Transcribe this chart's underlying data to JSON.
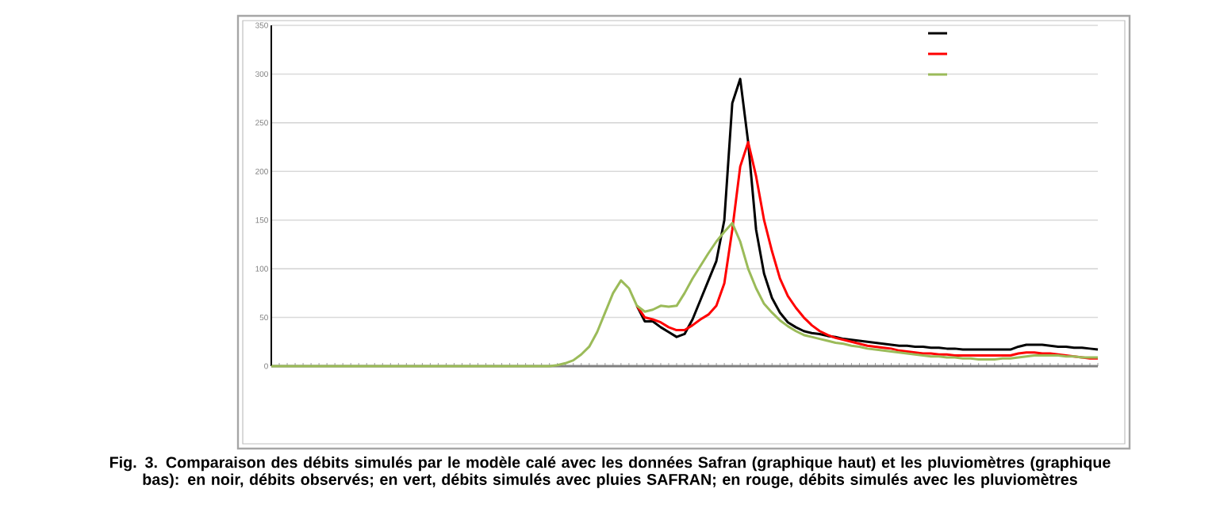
{
  "chart_data": {
    "type": "line",
    "categories": [
      null,
      null,
      null,
      null,
      null,
      null,
      null,
      null,
      null,
      null,
      null,
      null,
      null,
      null,
      null,
      null,
      null,
      null,
      null,
      null,
      null,
      null,
      null,
      null,
      null,
      null,
      null,
      null,
      null,
      null,
      null,
      null,
      null,
      null,
      null,
      null,
      null,
      null,
      null,
      null,
      null,
      null,
      null,
      null,
      null,
      null,
      null,
      null,
      null,
      null,
      null,
      null,
      null,
      null,
      null,
      null,
      null,
      null,
      null,
      null,
      null,
      null,
      null,
      null,
      null,
      null,
      null,
      null,
      null,
      null,
      null,
      null,
      null,
      null,
      null,
      null,
      null,
      null,
      null,
      null,
      null,
      null,
      null,
      null,
      null,
      null,
      null,
      null,
      null,
      null,
      null,
      null,
      null,
      null,
      null,
      null,
      null,
      null,
      null,
      null,
      null,
      null,
      null,
      null,
      null
    ],
    "series": [
      {
        "color": "#000000",
        "values": [
          null,
          null,
          null,
          null,
          null,
          null,
          null,
          null,
          null,
          null,
          null,
          null,
          null,
          null,
          null,
          null,
          null,
          null,
          null,
          null,
          null,
          null,
          null,
          null,
          null,
          null,
          null,
          null,
          null,
          null,
          null,
          null,
          null,
          null,
          null,
          null,
          null,
          null,
          null,
          null,
          null,
          null,
          null,
          null,
          null,
          null,
          62,
          46,
          46,
          40,
          35,
          30,
          33,
          48,
          68,
          88,
          108,
          150,
          270,
          295,
          230,
          140,
          95,
          70,
          55,
          45,
          40,
          36,
          34,
          33,
          31,
          30,
          28,
          27,
          26,
          25,
          24,
          23,
          22,
          21,
          21,
          20,
          20,
          19,
          19,
          18,
          18,
          17,
          17,
          17,
          17,
          17,
          17,
          17,
          20,
          22,
          22,
          22,
          21,
          20,
          20,
          19,
          19,
          18,
          17
        ]
      },
      {
        "color": "#ff0000",
        "values": [
          null,
          null,
          null,
          null,
          null,
          null,
          null,
          null,
          null,
          null,
          null,
          null,
          null,
          null,
          null,
          null,
          null,
          null,
          null,
          null,
          null,
          null,
          null,
          null,
          null,
          null,
          null,
          null,
          null,
          null,
          null,
          null,
          null,
          null,
          null,
          null,
          null,
          null,
          null,
          null,
          null,
          null,
          null,
          null,
          null,
          null,
          62,
          50,
          48,
          45,
          40,
          37,
          37,
          42,
          48,
          53,
          62,
          85,
          140,
          205,
          230,
          195,
          150,
          118,
          90,
          72,
          60,
          50,
          42,
          36,
          32,
          29,
          27,
          25,
          23,
          21,
          20,
          19,
          18,
          16,
          15,
          14,
          13,
          13,
          12,
          12,
          11,
          11,
          11,
          11,
          11,
          11,
          11,
          11,
          13,
          14,
          14,
          13,
          13,
          12,
          11,
          10,
          9,
          8,
          8
        ]
      },
      {
        "color": "#9bbb59",
        "values": [
          0,
          0,
          0,
          0,
          0,
          0,
          0,
          0,
          0,
          0,
          0,
          0,
          0,
          0,
          0,
          0,
          0,
          0,
          0,
          0,
          0,
          0,
          0,
          0,
          0,
          0,
          0,
          0,
          0,
          0,
          0,
          0,
          0,
          0,
          0,
          0,
          1,
          3,
          6,
          12,
          20,
          35,
          55,
          75,
          88,
          80,
          62,
          56,
          58,
          62,
          61,
          62,
          75,
          90,
          103,
          116,
          128,
          138,
          147,
          128,
          100,
          80,
          64,
          55,
          47,
          41,
          36,
          32,
          30,
          28,
          26,
          24,
          23,
          21,
          20,
          18,
          17,
          16,
          15,
          14,
          13,
          12,
          11,
          10,
          10,
          9,
          9,
          8,
          8,
          7,
          7,
          7,
          8,
          8,
          9,
          10,
          11,
          11,
          11,
          11,
          10,
          10,
          9,
          9,
          9
        ]
      }
    ],
    "ylim": [
      0,
      350
    ],
    "yticks": [
      0,
      50,
      100,
      150,
      200,
      250,
      300,
      350
    ],
    "grid": "y",
    "marker": "none",
    "line_style": "solid",
    "annotations": [
      "Fig. 3. Comparaison des débits simulés par le modèle calé avec les données Safran (graphique haut) et les pluviomètres (graphique bas): en noir, débits observés; en vert, débits simulés avec pluies SAFRAN; en rouge, débits simulés avec les pluviomètres"
    ]
  }
}
